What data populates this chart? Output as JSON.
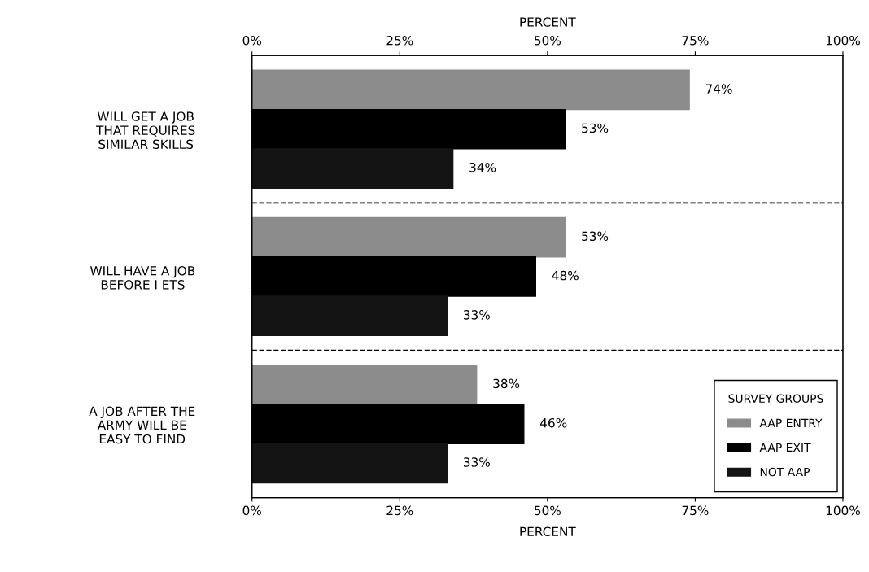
{
  "chart_data": {
    "type": "bar",
    "orientation": "horizontal",
    "categories": [
      "WILL GET A JOB\nTHAT REQUIRES\nSIMILAR SKILLS",
      "WILL HAVE A JOB\nBEFORE I ETS",
      "A JOB AFTER THE\nARMY WILL BE\nEASY TO FIND"
    ],
    "series": [
      {
        "name": "AAP ENTRY",
        "color": "#8c8c8c",
        "values": [
          74,
          53,
          38
        ],
        "value_labels": [
          "74%",
          "53%",
          "38%"
        ]
      },
      {
        "name": "AAP EXIT",
        "color": "#000000",
        "values": [
          53,
          48,
          46
        ],
        "value_labels": [
          "53%",
          "48%",
          "46%"
        ]
      },
      {
        "name": "NOT AAP",
        "color": "#141414",
        "values": [
          34,
          33,
          33
        ],
        "value_labels": [
          "34%",
          "33%",
          "33%"
        ]
      }
    ],
    "xlabel": "PERCENT",
    "x2label": "PERCENT",
    "xlim": [
      0,
      100
    ],
    "xticks": [
      {
        "value": 0,
        "label": "0%"
      },
      {
        "value": 25,
        "label": "25%"
      },
      {
        "value": 50,
        "label": "50%"
      },
      {
        "value": 75,
        "label": "75%"
      },
      {
        "value": 100,
        "label": "100%"
      }
    ],
    "x2lim": [
      0,
      100
    ],
    "x2ticks": [
      {
        "value": 0,
        "label": "0%"
      },
      {
        "value": 25,
        "label": "25%"
      },
      {
        "value": 50,
        "label": "50%"
      },
      {
        "value": 75,
        "label": "75%"
      },
      {
        "value": 100,
        "label": "100%"
      }
    ],
    "legend": "bottom right",
    "legend_title": "SURVEY GROUPS",
    "grid": false
  }
}
